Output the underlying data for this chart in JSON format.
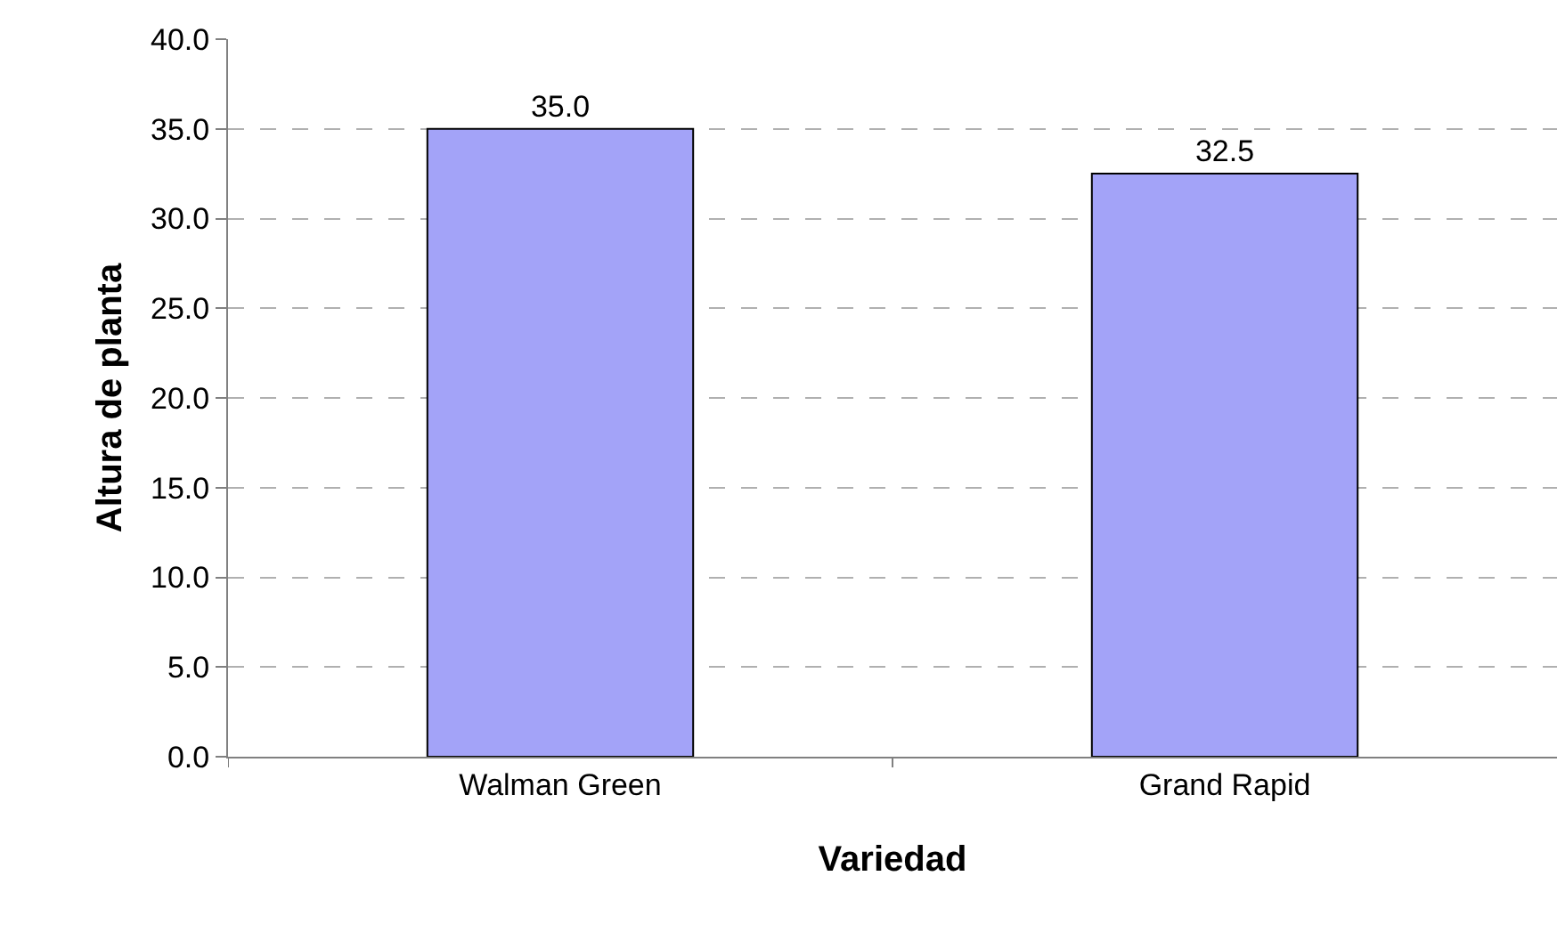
{
  "chart_data": {
    "type": "bar",
    "xlabel": "Variedad",
    "ylabel": "Altura de planta",
    "categories": [
      "Walman Green",
      "Grand Rapid"
    ],
    "values": [
      35.0,
      32.5
    ],
    "color": "#a3a3f8",
    "ylim": [
      0,
      40
    ],
    "yticks": [
      {
        "value": 0,
        "label": "0.0"
      },
      {
        "value": 5,
        "label": "5.0"
      },
      {
        "value": 10,
        "label": "10.0"
      },
      {
        "value": 15,
        "label": "15.0"
      },
      {
        "value": 20,
        "label": "20.0"
      },
      {
        "value": 25,
        "label": "25.0"
      },
      {
        "value": 30,
        "label": "30.0"
      },
      {
        "value": 35,
        "label": "35.0"
      },
      {
        "value": 40,
        "label": "40.0"
      }
    ],
    "value_labels": [
      "35.0",
      "32.5"
    ],
    "grid": "y"
  }
}
